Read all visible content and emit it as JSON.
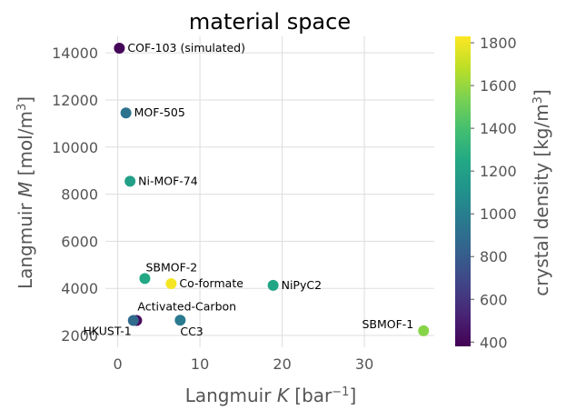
{
  "chart_data": {
    "type": "scatter",
    "title": "material space",
    "xlabel": "Langmuir K [bar⁻¹]",
    "ylabel": "Langmuir M [mol/m³]",
    "xlim": [
      -1.5,
      38.5
    ],
    "ylim": [
      1500,
      14700
    ],
    "xticks": [
      0,
      10,
      20,
      30
    ],
    "yticks": [
      2000,
      4000,
      6000,
      8000,
      10000,
      12000,
      14000
    ],
    "grid": true,
    "colorbar": {
      "label": "crystal density [kg/m³]",
      "range": [
        380,
        1830
      ],
      "ticks": [
        400,
        600,
        800,
        1000,
        1200,
        1400,
        1600,
        1800
      ],
      "colormap": "viridis"
    },
    "points": [
      {
        "label": "COF-103 (simulated)",
        "x": 0.2,
        "y": 14200,
        "density": 400
      },
      {
        "label": "MOF-505",
        "x": 1.0,
        "y": 11450,
        "density": 930
      },
      {
        "label": "Ni-MOF-74",
        "x": 1.5,
        "y": 8550,
        "density": 1200
      },
      {
        "label": "SBMOF-2",
        "x": 3.3,
        "y": 4420,
        "density": 1250
      },
      {
        "label": "Co-formate",
        "x": 6.5,
        "y": 4200,
        "density": 1810
      },
      {
        "label": "NiPyC2",
        "x": 18.9,
        "y": 4130,
        "density": 1230
      },
      {
        "label": "Activated-Carbon",
        "x": 2.3,
        "y": 2640,
        "density": 420
      },
      {
        "label": "HKUST-1",
        "x": 1.9,
        "y": 2640,
        "density": 880
      },
      {
        "label": "CC3",
        "x": 7.6,
        "y": 2650,
        "density": 970
      },
      {
        "label": "SBMOF-1",
        "x": 37.2,
        "y": 2200,
        "density": 1570
      }
    ]
  }
}
